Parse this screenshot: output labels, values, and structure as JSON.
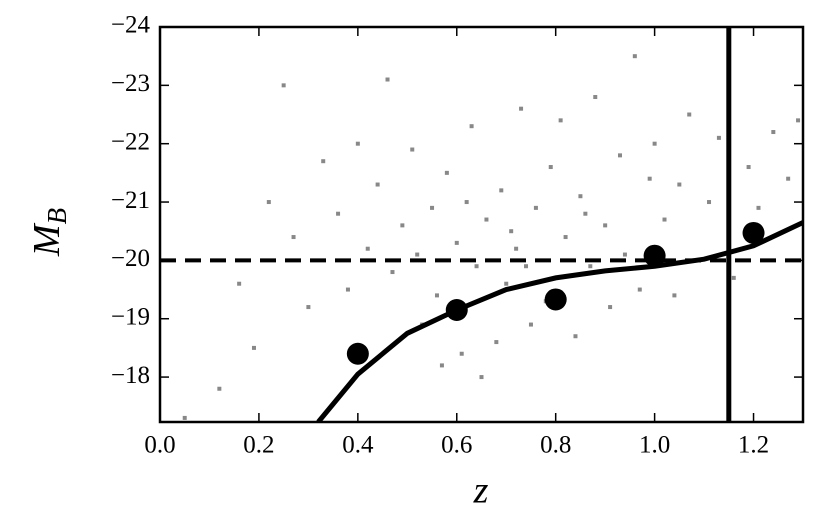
{
  "chart_data": {
    "type": "scatter",
    "xlabel": "z",
    "ylabel": "M",
    "ylabel_sub": "B",
    "xlim": [
      0,
      1.3
    ],
    "ylim": [
      -17.23,
      -24
    ],
    "xticks": [
      {
        "value": 0,
        "label": "0.0"
      },
      0.2,
      0.4,
      0.6,
      0.8,
      {
        "value": 1,
        "label": "1.0"
      },
      1.2
    ],
    "yticks": [
      {
        "value": -18,
        "label": "−18"
      },
      {
        "value": -19,
        "label": "−19"
      },
      {
        "value": -20,
        "label": "−20"
      },
      {
        "value": -21,
        "label": "−21"
      },
      {
        "value": -22,
        "label": "−22"
      },
      {
        "value": -23,
        "label": "−23"
      },
      {
        "value": -24,
        "label": "−24"
      }
    ],
    "scatter": {
      "color": "#888888",
      "x": [
        0.05,
        0.12,
        0.16,
        0.19,
        0.22,
        0.25,
        0.27,
        0.3,
        0.33,
        0.36,
        0.38,
        0.4,
        0.42,
        0.44,
        0.46,
        0.47,
        0.49,
        0.51,
        0.53,
        0.55,
        0.56,
        0.58,
        0.6,
        0.61,
        0.63,
        0.64,
        0.66,
        0.68,
        0.69,
        0.7,
        0.72,
        0.73,
        0.75,
        0.76,
        0.78,
        0.79,
        0.81,
        0.82,
        0.84,
        0.85,
        0.87,
        0.88,
        0.9,
        0.91,
        0.93,
        0.94,
        0.96,
        0.97,
        0.99,
        1.0,
        1.02,
        1.04,
        1.05,
        1.07,
        1.09,
        1.11,
        1.13,
        1.16,
        1.19,
        1.21,
        1.24,
        1.27,
        1.29,
        0.57,
        0.65,
        0.71,
        0.52,
        0.62,
        0.74,
        0.86
      ],
      "values": [
        -17.3,
        -17.8,
        -19.6,
        -18.5,
        -21.0,
        -23.0,
        -20.4,
        -19.2,
        -21.7,
        -20.8,
        -19.5,
        -22.0,
        -20.2,
        -21.3,
        -23.1,
        -19.8,
        -20.6,
        -21.9,
        -18.9,
        -20.9,
        -19.4,
        -21.5,
        -20.3,
        -18.4,
        -22.3,
        -19.9,
        -20.7,
        -18.6,
        -21.2,
        -19.6,
        -20.2,
        -22.6,
        -18.9,
        -20.9,
        -19.3,
        -21.6,
        -22.4,
        -20.4,
        -18.7,
        -21.1,
        -19.9,
        -22.8,
        -20.6,
        -19.2,
        -21.8,
        -20.1,
        -23.5,
        -19.5,
        -21.4,
        -22.0,
        -20.7,
        -19.4,
        -21.3,
        -22.5,
        -20.0,
        -21.0,
        -22.1,
        -19.7,
        -21.6,
        -20.9,
        -22.2,
        -21.4,
        -22.4,
        -18.2,
        -18.0,
        -20.5,
        -20.1,
        -21.0,
        -19.9,
        -20.8
      ]
    },
    "binned": {
      "color": "#000000",
      "x": [
        0.4,
        0.6,
        0.8,
        1.0,
        1.2
      ],
      "values": [
        -18.4,
        -19.15,
        -19.33,
        -20.08,
        -20.47
      ]
    },
    "curve": {
      "color": "#000000",
      "x": [
        0.32,
        0.4,
        0.5,
        0.6,
        0.7,
        0.8,
        0.9,
        1.0,
        1.1,
        1.2,
        1.3
      ],
      "values": [
        -17.23,
        -18.05,
        -18.75,
        -19.15,
        -19.5,
        -19.7,
        -19.82,
        -19.9,
        -20.02,
        -20.25,
        -20.65
      ]
    },
    "hline": -20,
    "vline": 1.15
  }
}
